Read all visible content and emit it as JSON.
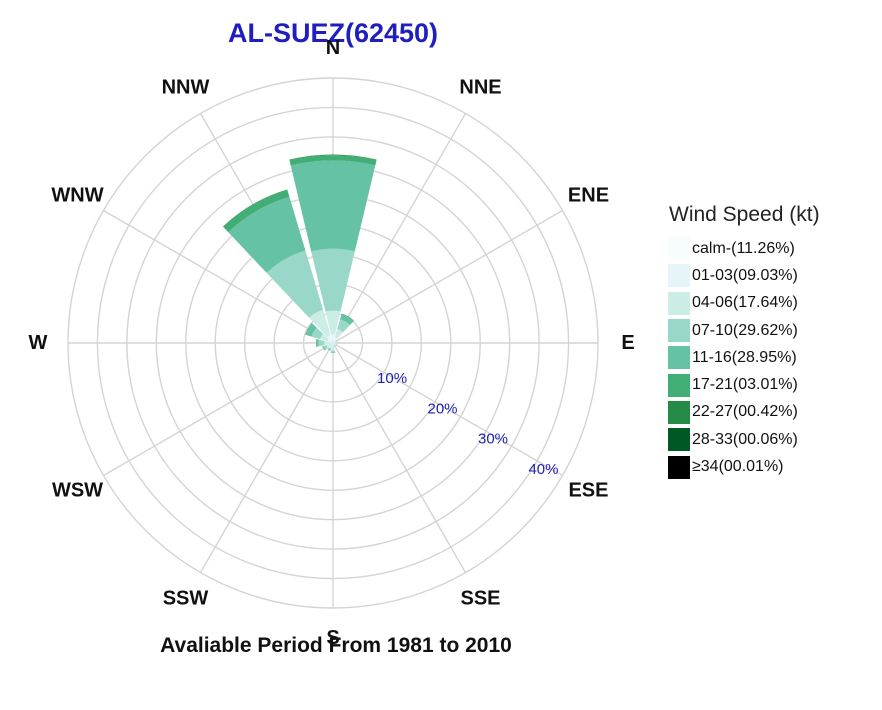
{
  "chart_data": {
    "type": "windrose",
    "title": "AL-SUEZ(62450)",
    "caption": "Avaliable Period From 1981 to 2010",
    "legend_title": "Wind Speed (kt)",
    "legend_placement": "right",
    "directions": [
      "N",
      "NNE",
      "ENE",
      "E",
      "ESE",
      "SSE",
      "S",
      "SSW",
      "WSW",
      "W",
      "WNW",
      "NNW"
    ],
    "radial_ticks": [
      {
        "value": 10,
        "label": "10%"
      },
      {
        "value": 20,
        "label": "20%"
      },
      {
        "value": 30,
        "label": "30%"
      },
      {
        "value": 40,
        "label": "40%"
      }
    ],
    "rmax": 45,
    "grid": true,
    "speed_bins": [
      {
        "label": "calm-(11.26%)",
        "color": "#f7fcfd"
      },
      {
        "label": "01-03(09.03%)",
        "color": "#e5f5f9"
      },
      {
        "label": "04-06(17.64%)",
        "color": "#ccece6"
      },
      {
        "label": "07-10(29.62%)",
        "color": "#99d8c9"
      },
      {
        "label": "11-16(28.95%)",
        "color": "#66c2a4"
      },
      {
        "label": "17-21(03.01%)",
        "color": "#41ae76"
      },
      {
        "label": "22-27(00.42%)",
        "color": "#238b45"
      },
      {
        "label": "28-33(00.06%)",
        "color": "#005824"
      },
      {
        "label": "≥34(00.01%)",
        "color": "#000000"
      }
    ],
    "series": [
      {
        "direction": "N",
        "values": [
          0,
          1.5,
          4.0,
          10.5,
          15.0,
          0.9,
          0.1,
          0.0,
          0.0
        ]
      },
      {
        "direction": "NNE",
        "values": [
          0,
          1.0,
          1.5,
          1.7,
          0.9,
          0.1,
          0.0,
          0.0,
          0.0
        ]
      },
      {
        "direction": "ENE",
        "values": [
          0,
          0.4,
          0.3,
          0.1,
          0.0,
          0.0,
          0.0,
          0.0,
          0.0
        ]
      },
      {
        "direction": "E",
        "values": [
          0,
          0.4,
          0.3,
          0.1,
          0.0,
          0.0,
          0.0,
          0.0,
          0.0
        ]
      },
      {
        "direction": "ESE",
        "values": [
          0,
          0.3,
          0.3,
          0.1,
          0.0,
          0.0,
          0.0,
          0.0,
          0.0
        ]
      },
      {
        "direction": "SSE",
        "values": [
          0,
          0.3,
          0.3,
          0.1,
          0.0,
          0.0,
          0.0,
          0.0,
          0.0
        ]
      },
      {
        "direction": "S",
        "values": [
          0,
          0.5,
          0.8,
          0.3,
          0.1,
          0.0,
          0.0,
          0.0,
          0.0
        ]
      },
      {
        "direction": "SSW",
        "values": [
          0,
          0.4,
          0.6,
          0.3,
          0.1,
          0.0,
          0.0,
          0.0,
          0.0
        ]
      },
      {
        "direction": "WSW",
        "values": [
          0,
          0.4,
          0.8,
          0.5,
          0.2,
          0.0,
          0.0,
          0.0,
          0.0
        ]
      },
      {
        "direction": "W",
        "values": [
          0,
          0.5,
          1.0,
          1.0,
          0.4,
          0.0,
          0.0,
          0.0,
          0.0
        ]
      },
      {
        "direction": "WNW",
        "values": [
          0,
          1.0,
          1.3,
          1.5,
          1.0,
          0.1,
          0.0,
          0.0,
          0.0
        ]
      },
      {
        "direction": "NNW",
        "values": [
          0,
          1.4,
          4.5,
          10.5,
          9.5,
          1.2,
          0.1,
          0.0,
          0.0
        ]
      }
    ]
  }
}
